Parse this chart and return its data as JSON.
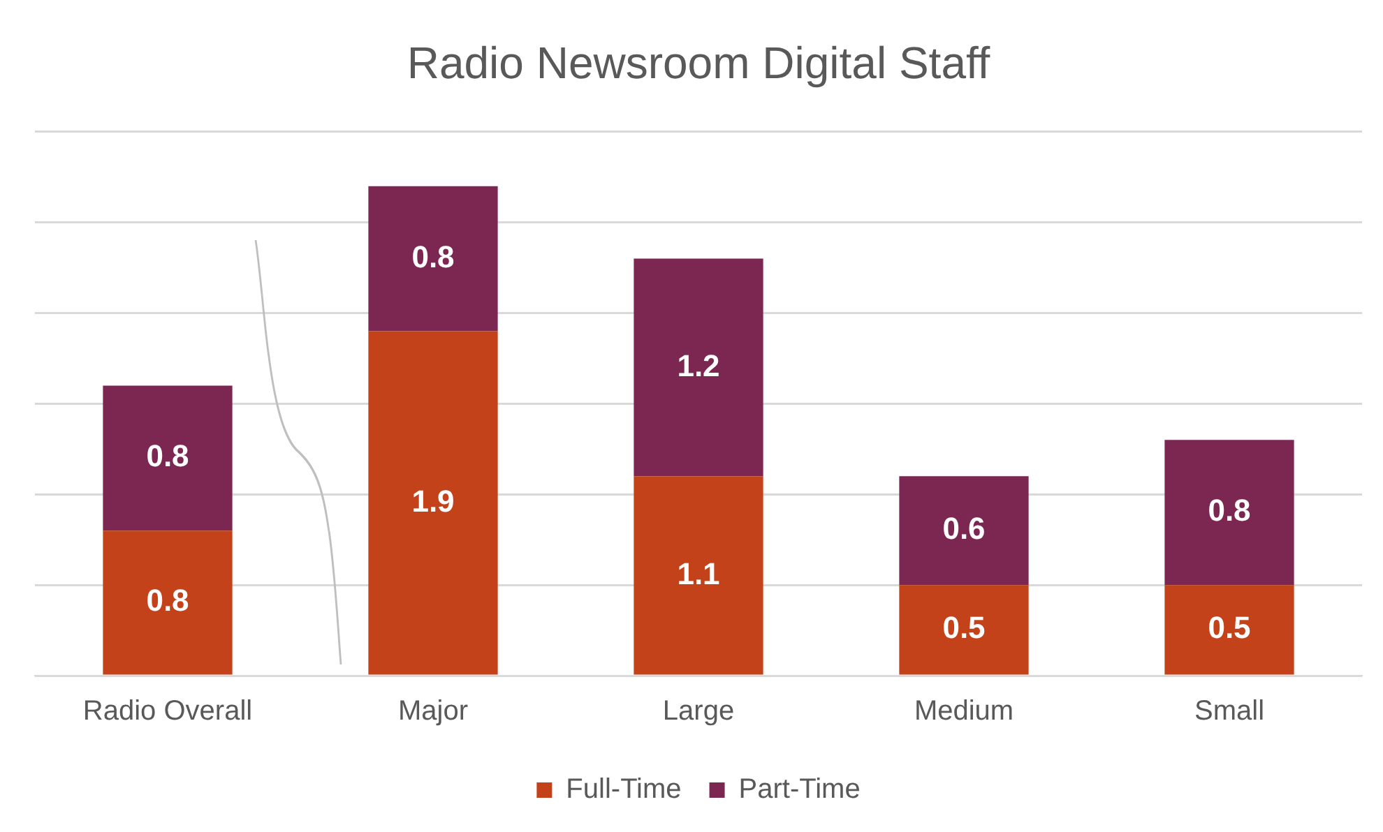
{
  "chart_data": {
    "type": "bar",
    "title": "Radio Newsroom Digital Staff",
    "stacked": true,
    "categories": [
      "Radio Overall",
      "Major",
      "Large",
      "Medium",
      "Small"
    ],
    "series": [
      {
        "name": "Full-Time",
        "color": "#c3421a",
        "values": [
          0.8,
          1.9,
          1.1,
          0.5,
          0.5
        ]
      },
      {
        "name": "Part-Time",
        "color": "#7b2752",
        "values": [
          0.8,
          0.8,
          1.2,
          0.6,
          0.8
        ]
      }
    ],
    "ylim": [
      0,
      3
    ],
    "yticks": [
      {
        "value": 0,
        "label": null
      },
      {
        "value": 0.5,
        "label": null
      },
      {
        "value": 1,
        "label": null
      },
      {
        "value": 1.5,
        "label": null
      },
      {
        "value": 2,
        "label": null
      },
      {
        "value": 2.5,
        "label": null
      },
      {
        "value": 3,
        "label": null
      }
    ],
    "tick_labels": "x",
    "grid": "y",
    "legend": "bottom",
    "data_labels": true
  }
}
